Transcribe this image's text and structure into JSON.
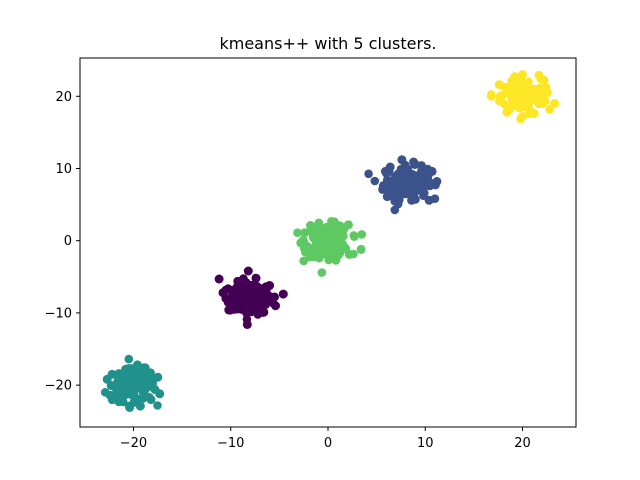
{
  "chart_data": {
    "type": "scatter",
    "title": "kmeans++ with 5 clusters.",
    "xlabel": "",
    "ylabel": "",
    "xlim": [
      -25.5,
      25.5
    ],
    "ylim": [
      -25.8,
      25.3
    ],
    "grid": false,
    "legend": "none",
    "xticks": [
      -20,
      -10,
      0,
      10,
      20
    ],
    "yticks": [
      -20,
      -10,
      0,
      10,
      20
    ],
    "xtick_labels": [
      "−20",
      "−10",
      "0",
      "10",
      "20"
    ],
    "ytick_labels": [
      "−20",
      "−10",
      "0",
      "10",
      "20"
    ],
    "series": [
      {
        "color": "#440154",
        "center": [
          -8,
          -8
        ],
        "points": [
          [
            -8,
            -8
          ],
          [
            -7,
            -7.5
          ],
          [
            -9,
            -8.5
          ],
          [
            -6.5,
            -8
          ],
          [
            -9.5,
            -7.5
          ],
          [
            -8,
            -6.5
          ],
          [
            -8,
            -9.5
          ],
          [
            -7,
            -9
          ],
          [
            -9,
            -7
          ],
          [
            -10.5,
            -8
          ],
          [
            -5.5,
            -7.8
          ],
          [
            -4.6,
            -7.4
          ],
          [
            -11.2,
            -5.3
          ],
          [
            -8.2,
            -4.2
          ],
          [
            -8.3,
            -11.6
          ],
          [
            -6.6,
            -9.9
          ],
          [
            -9.6,
            -9.4
          ],
          [
            -10.8,
            -7.2
          ],
          [
            -6,
            -6.2
          ],
          [
            -7.4,
            -5.2
          ],
          [
            -5.4,
            -9
          ],
          [
            -10.2,
            -9.6
          ]
        ]
      },
      {
        "color": "#3b528b",
        "center": [
          8,
          8
        ],
        "points": [
          [
            8,
            8
          ],
          [
            7,
            8.5
          ],
          [
            9,
            7.5
          ],
          [
            6.5,
            8
          ],
          [
            9.5,
            8.5
          ],
          [
            8,
            9.5
          ],
          [
            8,
            6.5
          ],
          [
            7,
            7
          ],
          [
            9,
            9
          ],
          [
            5.7,
            7.6
          ],
          [
            10.5,
            8
          ],
          [
            11.2,
            8.2
          ],
          [
            7.6,
            11.2
          ],
          [
            6.4,
            10.2
          ],
          [
            10.7,
            9.6
          ],
          [
            10.4,
            5.6
          ],
          [
            7.2,
            5.1
          ],
          [
            8.6,
            5.6
          ],
          [
            6.1,
            6.1
          ],
          [
            5.9,
            9.6
          ],
          [
            9.6,
            10.4
          ],
          [
            8.8,
            10.9
          ]
        ]
      },
      {
        "color": "#21918c",
        "center": [
          -20,
          -20
        ],
        "points": [
          [
            -20,
            -20
          ],
          [
            -19,
            -19.5
          ],
          [
            -21,
            -20.5
          ],
          [
            -18.5,
            -20
          ],
          [
            -21.5,
            -19.5
          ],
          [
            -20,
            -18.5
          ],
          [
            -20,
            -21.5
          ],
          [
            -19,
            -21
          ],
          [
            -21,
            -19
          ],
          [
            -22.7,
            -19.2
          ],
          [
            -17.5,
            -18.9
          ],
          [
            -17.3,
            -21.2
          ],
          [
            -19.6,
            -17.2
          ],
          [
            -21.5,
            -22.3
          ],
          [
            -19.3,
            -22.9
          ],
          [
            -22.4,
            -21.4
          ],
          [
            -20.8,
            -17.8
          ],
          [
            -17.8,
            -20.6
          ],
          [
            -18.2,
            -22
          ],
          [
            -22.2,
            -18.5
          ],
          [
            -20.4,
            -23.1
          ],
          [
            -18.8,
            -17.6
          ]
        ]
      },
      {
        "color": "#5ec962",
        "center": [
          0,
          0
        ],
        "points": [
          [
            0,
            0
          ],
          [
            1,
            0.5
          ],
          [
            -1,
            -0.5
          ],
          [
            0.5,
            1
          ],
          [
            -0.5,
            -1
          ],
          [
            1.5,
            -0.5
          ],
          [
            -1.5,
            0.5
          ],
          [
            0,
            1.5
          ],
          [
            0,
            -1.5
          ],
          [
            -2.8,
            -0.3
          ],
          [
            3.4,
            -1.2
          ],
          [
            2.2,
            -1.9
          ],
          [
            0.4,
            2.6
          ],
          [
            -1.8,
            2.1
          ],
          [
            1.6,
            1.8
          ],
          [
            -0.9,
            -2.4
          ],
          [
            0.8,
            -2.7
          ],
          [
            -2.3,
            -1.6
          ],
          [
            2.7,
            0.6
          ],
          [
            -1.2,
            1.9
          ],
          [
            2.1,
            2.2
          ],
          [
            -2.4,
            1.1
          ]
        ]
      },
      {
        "color": "#fde725",
        "center": [
          20,
          20
        ],
        "points": [
          [
            20,
            20
          ],
          [
            21,
            20.5
          ],
          [
            19,
            19.5
          ],
          [
            20.5,
            21
          ],
          [
            19.5,
            19
          ],
          [
            21.5,
            19.5
          ],
          [
            18.5,
            20.5
          ],
          [
            20,
            21.5
          ],
          [
            20,
            18.5
          ],
          [
            16.8,
            20
          ],
          [
            23.3,
            19
          ],
          [
            21.9,
            22.4
          ],
          [
            20,
            23
          ],
          [
            19.2,
            22.7
          ],
          [
            18.4,
            17.8
          ],
          [
            20,
            17.2
          ],
          [
            22.4,
            21.2
          ],
          [
            21.2,
            17.6
          ],
          [
            17.6,
            21.6
          ],
          [
            22.8,
            18.2
          ],
          [
            18.9,
            22.1
          ],
          [
            21.7,
            22.9
          ]
        ]
      }
    ]
  }
}
